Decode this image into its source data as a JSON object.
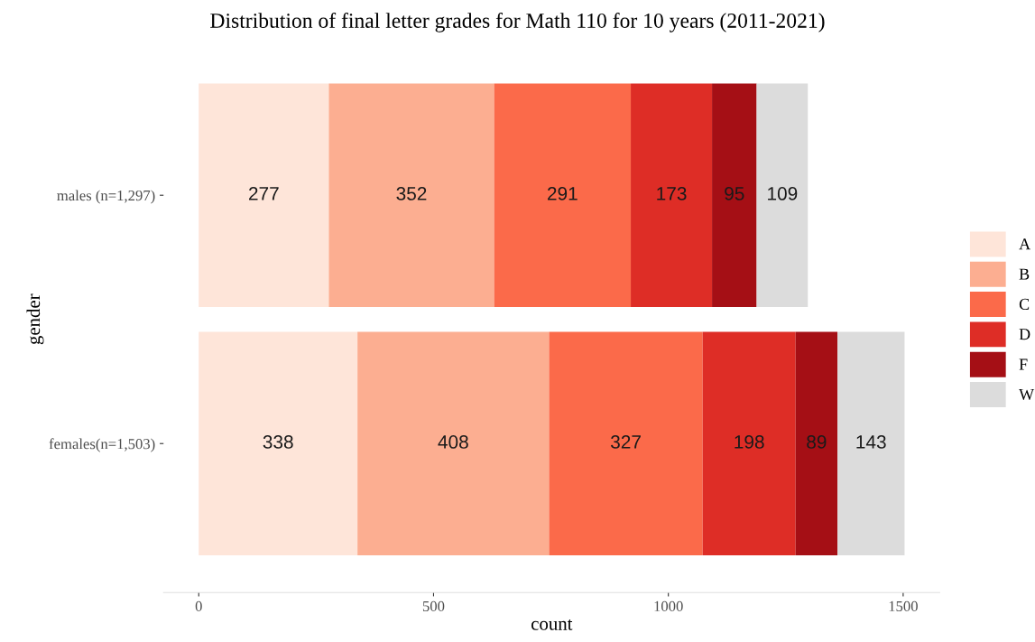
{
  "chart_data": {
    "type": "bar",
    "orientation": "horizontal",
    "stacked": true,
    "title": "Distribution of final letter grades for Math 110 for 10 years (2011-2021)",
    "xlabel": "count",
    "ylabel": "gender",
    "categories": [
      "males (n=1,297)",
      "females(n=1,503)"
    ],
    "series": [
      {
        "name": "A",
        "color": "#fee5d9",
        "values": [
          277,
          338
        ]
      },
      {
        "name": "B",
        "color": "#fcae91",
        "values": [
          352,
          408
        ]
      },
      {
        "name": "C",
        "color": "#fb6a4a",
        "values": [
          291,
          327
        ]
      },
      {
        "name": "D",
        "color": "#de2d26",
        "values": [
          173,
          198
        ]
      },
      {
        "name": "F",
        "color": "#a50f15",
        "values": [
          95,
          89
        ]
      },
      {
        "name": "W",
        "color": "#dcdcdc",
        "values": [
          109,
          143
        ]
      }
    ],
    "xlim": [
      -75,
      1578
    ],
    "xticks": [
      0,
      500,
      1000,
      1500
    ],
    "data_labels": true,
    "grid": false,
    "legend": "right"
  }
}
